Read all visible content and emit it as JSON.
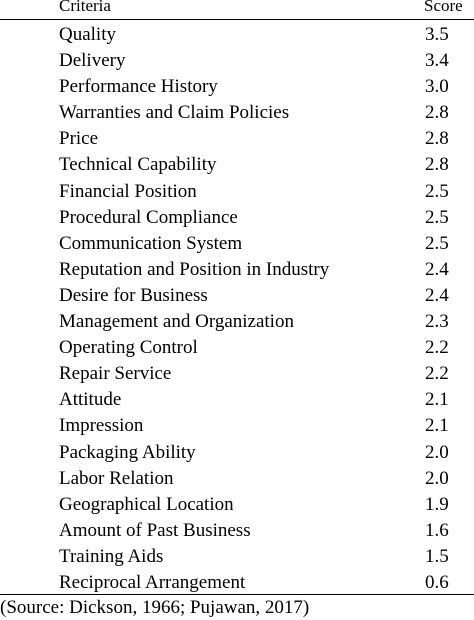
{
  "table": {
    "header": {
      "criteria": "Criteria",
      "score": "Score"
    },
    "rows": [
      {
        "criteria": "Quality",
        "score": "3.5"
      },
      {
        "criteria": "Delivery",
        "score": "3.4"
      },
      {
        "criteria": "Performance History",
        "score": "3.0"
      },
      {
        "criteria": "Warranties and Claim Policies",
        "score": "2.8"
      },
      {
        "criteria": "Price",
        "score": "2.8"
      },
      {
        "criteria": "Technical Capability",
        "score": "2.8"
      },
      {
        "criteria": "Financial Position",
        "score": "2.5"
      },
      {
        "criteria": "Procedural Compliance",
        "score": "2.5"
      },
      {
        "criteria": "Communication System",
        "score": "2.5"
      },
      {
        "criteria": "Reputation and Position in Industry",
        "score": "2.4"
      },
      {
        "criteria": "Desire for Business",
        "score": "2.4"
      },
      {
        "criteria": "Management and Organization",
        "score": "2.3"
      },
      {
        "criteria": "Operating Control",
        "score": "2.2"
      },
      {
        "criteria": "Repair Service",
        "score": "2.2"
      },
      {
        "criteria": "Attitude",
        "score": "2.1"
      },
      {
        "criteria": "Impression",
        "score": "2.1"
      },
      {
        "criteria": "Packaging Ability",
        "score": "2.0"
      },
      {
        "criteria": "Labor Relation",
        "score": "2.0"
      },
      {
        "criteria": "Geographical Location",
        "score": "1.9"
      },
      {
        "criteria": "Amount of Past Business",
        "score": "1.6"
      },
      {
        "criteria": "Training Aids",
        "score": "1.5"
      },
      {
        "criteria": "Reciprocal Arrangement",
        "score": "0.6"
      }
    ]
  },
  "source": "(Source: Dickson, 1966; Pujawan, 2017)"
}
